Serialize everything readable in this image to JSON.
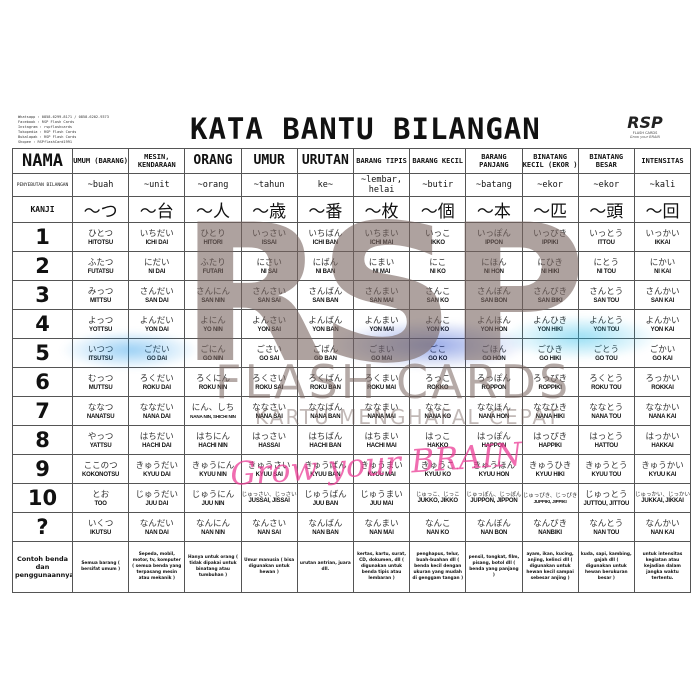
{
  "contact": [
    "Whatsapp  : 0858-6299-8171 / 0858-6202-9373",
    "Facebook  : RSP Flash Cards",
    "Instagram : rspflashcards",
    "Tokopedia : RSP Flash Cards",
    "Bukalapak : RSP Flash Cards",
    "Shopee    : RSPflashCard1991"
  ],
  "title": "KATA BANTU BILANGAN",
  "logo": {
    "text": "RSP",
    "sub": "FLASH CARDS",
    "tagline": "Grow your BRAIN"
  },
  "watermark": {
    "rsp": "RSP",
    "flash_cards": "FLASH CARDS",
    "kartu": "KARTU MENGHAFAL CEPAT",
    "grow": "Grow your BRAIN"
  },
  "headers": [
    "NAMA",
    "UMUM (BARANG)",
    "MESIN, KENDARAAN",
    "ORANG",
    "UMUR",
    "URUTAN",
    "BARANG TIPIS",
    "BARANG KECIL",
    "BARANG PANJANG",
    "BINATANG KECIL (EKOR )",
    "BINATANG BESAR",
    "INTENSITAS"
  ],
  "penyebutan": {
    "label": "PENYEBUTAN BILANGAN",
    "values": [
      "~buah",
      "~unit",
      "~orang",
      "~tahun",
      "ke~",
      "~lembar, helai",
      "~butir",
      "~batang",
      "~ekor",
      "~ekor",
      "~kali"
    ]
  },
  "kanji": {
    "label": "KANJI",
    "values": [
      "〜つ",
      "〜台",
      "〜人",
      "〜歳",
      "〜番",
      "〜枚",
      "〜個",
      "〜本",
      "〜匹",
      "〜頭",
      "〜回"
    ]
  },
  "rows": [
    {
      "number": "1",
      "cells": [
        [
          "ひとつ",
          "HITOTSU"
        ],
        [
          "いちだい",
          "ICHI DAI"
        ],
        [
          "ひとり",
          "HITORI"
        ],
        [
          "いっさい",
          "ISSAI"
        ],
        [
          "いちばん",
          "ICHI BAN"
        ],
        [
          "いちまい",
          "ICHI MAI"
        ],
        [
          "いっこ",
          "IKKO"
        ],
        [
          "いっぽん",
          "IPPON"
        ],
        [
          "いっぴき",
          "IPPIKI"
        ],
        [
          "いっとう",
          "ITTOU"
        ],
        [
          "いっかい",
          "IKKAI"
        ]
      ]
    },
    {
      "number": "2",
      "cells": [
        [
          "ふたつ",
          "FUTATSU"
        ],
        [
          "にだい",
          "NI DAI"
        ],
        [
          "ふたり",
          "FUTARI"
        ],
        [
          "にさい",
          "NI SAI"
        ],
        [
          "にばん",
          "NI BAN"
        ],
        [
          "にまい",
          "NI MAI"
        ],
        [
          "にこ",
          "NI KO"
        ],
        [
          "にほん",
          "NI HON"
        ],
        [
          "にひき",
          "NI HIKI"
        ],
        [
          "にとう",
          "NI TOU"
        ],
        [
          "にかい",
          "NI KAI"
        ]
      ]
    },
    {
      "number": "3",
      "cells": [
        [
          "みっつ",
          "MITTSU"
        ],
        [
          "さんだい",
          "SAN DAI"
        ],
        [
          "さんにん",
          "SAN NIN"
        ],
        [
          "さんさい",
          "SAN SAI"
        ],
        [
          "さんばん",
          "SAN BAN"
        ],
        [
          "さんまい",
          "SAN MAI"
        ],
        [
          "さんこ",
          "SAN KO"
        ],
        [
          "さんぼん",
          "SAN BON"
        ],
        [
          "さんびき",
          "SAN BIKI"
        ],
        [
          "さんとう",
          "SAN TOU"
        ],
        [
          "さんかい",
          "SAN KAI"
        ]
      ]
    },
    {
      "number": "4",
      "cells": [
        [
          "よっつ",
          "YOTTSU"
        ],
        [
          "よんだい",
          "YON DAI"
        ],
        [
          "よにん",
          "YO NIN"
        ],
        [
          "よんさい",
          "YON SAI"
        ],
        [
          "よんばん",
          "YON BAN"
        ],
        [
          "よんまい",
          "YON MAI"
        ],
        [
          "よんこ",
          "YON KO"
        ],
        [
          "よんほん",
          "YON HON"
        ],
        [
          "よんひき",
          "YON HIKI"
        ],
        [
          "よんとう",
          "YON TOU"
        ],
        [
          "よんかい",
          "YON KAI"
        ]
      ]
    },
    {
      "number": "5",
      "cells": [
        [
          "いつつ",
          "ITSUTSU"
        ],
        [
          "ごだい",
          "GO DAI"
        ],
        [
          "ごにん",
          "GO NIN"
        ],
        [
          "ごさい",
          "GO SAI"
        ],
        [
          "ごばん",
          "GO BAN"
        ],
        [
          "ごまい",
          "GO MAI"
        ],
        [
          "ごこ",
          "GO KO"
        ],
        [
          "ごほん",
          "GO HON"
        ],
        [
          "ごひき",
          "GO HIKI"
        ],
        [
          "ごとう",
          "GO TOU"
        ],
        [
          "ごかい",
          "GO KAI"
        ]
      ]
    },
    {
      "number": "6",
      "cells": [
        [
          "むっつ",
          "MUTTSU"
        ],
        [
          "ろくだい",
          "ROKU DAI"
        ],
        [
          "ろくにん",
          "ROKU NIN"
        ],
        [
          "ろくさい",
          "ROKU SAI"
        ],
        [
          "ろくばん",
          "ROKU BAN"
        ],
        [
          "ろくまい",
          "ROKU MAI"
        ],
        [
          "ろっこ",
          "ROKKO"
        ],
        [
          "ろっぽん",
          "ROPPON"
        ],
        [
          "ろっぴき",
          "ROPPIKI"
        ],
        [
          "ろくとう",
          "ROKU TOU"
        ],
        [
          "ろっかい",
          "ROKKAI"
        ]
      ]
    },
    {
      "number": "7",
      "cells": [
        [
          "ななつ",
          "NANATSU"
        ],
        [
          "ななだい",
          "NANA DAI"
        ],
        [
          "にん、しち",
          "NANA NIN, SHICHI NIN"
        ],
        [
          "ななさい",
          "NANA SAI"
        ],
        [
          "ななばん",
          "NANA BAN"
        ],
        [
          "ななまい",
          "NANA MAI"
        ],
        [
          "ななこ",
          "NANA KO"
        ],
        [
          "ななほん",
          "NANA HON"
        ],
        [
          "ななひき",
          "NANA HIKI"
        ],
        [
          "ななとう",
          "NANA TOU"
        ],
        [
          "ななかい",
          "NANA KAI"
        ]
      ]
    },
    {
      "number": "8",
      "cells": [
        [
          "やっつ",
          "YATTSU"
        ],
        [
          "はちだい",
          "HACHI DAI"
        ],
        [
          "はちにん",
          "HACHI NIN"
        ],
        [
          "はっさい",
          "HASSAI"
        ],
        [
          "はちばん",
          "HACHI BAN"
        ],
        [
          "はちまい",
          "HACHI MAI"
        ],
        [
          "はっこ",
          "HAKKO"
        ],
        [
          "はっぽん",
          "HAPPON"
        ],
        [
          "はっぴき",
          "HAPPIKI"
        ],
        [
          "はっとう",
          "HATTOU"
        ],
        [
          "はっかい",
          "HAKKAI"
        ]
      ]
    },
    {
      "number": "9",
      "cells": [
        [
          "ここのつ",
          "KOKONOTSU"
        ],
        [
          "きゅうだい",
          "KYUU DAI"
        ],
        [
          "きゅうにん",
          "KYUU NIN"
        ],
        [
          "きゅうさい",
          "KYUU SAI"
        ],
        [
          "きゅうばん",
          "KYUU BAN"
        ],
        [
          "きゅうまい",
          "KYUU MAI"
        ],
        [
          "きゅうこ",
          "KYUU KO"
        ],
        [
          "きゅうほん",
          "KYUU HON"
        ],
        [
          "きゅうひき",
          "KYUU HIKI"
        ],
        [
          "きゅうとう",
          "KYUU TOU"
        ],
        [
          "きゅうかい",
          "KYUU KAI"
        ]
      ]
    },
    {
      "number": "10",
      "cells": [
        [
          "とお",
          "TOO"
        ],
        [
          "じゅうだい",
          "JUU DAI"
        ],
        [
          "じゅうにん",
          "JUU NIN"
        ],
        [
          "じゅっさい、じっさい",
          "JUSSAI, JISSAI"
        ],
        [
          "じゅうばん",
          "JUU BAN"
        ],
        [
          "じゅうまい",
          "JUU MAI"
        ],
        [
          "じゅっこ、じっこ",
          "JUKKO, JIKKO"
        ],
        [
          "じゅっぽん、じっぽん",
          "JUPPON, JIPPON"
        ],
        [
          "じゅっぴき、じっぴき",
          "JUPPIKI, JIPPIKI"
        ],
        [
          "じゅっとう",
          "JUTTOU, JITTOU"
        ],
        [
          "じゅっかい、じっかい",
          "JUKKAI, JIKKAI"
        ]
      ]
    },
    {
      "number": "?",
      "cells": [
        [
          "いくつ",
          "IKUTSU"
        ],
        [
          "なんだい",
          "NAN DAI"
        ],
        [
          "なんにん",
          "NAN NIN"
        ],
        [
          "なんさい",
          "NAN SAI"
        ],
        [
          "なんばん",
          "NAN BAN"
        ],
        [
          "なんまい",
          "NAN MAI"
        ],
        [
          "なんこ",
          "NAN KO"
        ],
        [
          "なんぼん",
          "NAN BON"
        ],
        [
          "なんびき",
          "NANBIKI"
        ],
        [
          "なんとう",
          "NAN TOU"
        ],
        [
          "なんかい",
          "NAN KAI"
        ]
      ]
    }
  ],
  "examples": {
    "label": "Contoh benda dan penggunaannya",
    "values": [
      "Semua barang ( bersifat umum )",
      "Sepeda, mobil, motor, tv, komputer ( semua benda yang terpasang mesin atau mekanik )",
      "Hanya untuk orang ( tidak dipakai untuk binatang atau tumbuhan )",
      "Umur manusia ( bisa digunakan untuk hewan )",
      "urutan antrian, juara dll.",
      "kertas, kartu, surat, CD, dokumen, dll ( digunakan untuk benda tipis atau lembaran )",
      "penghapus, telur, buah-buahan dll ( benda kecil dengan ukuran yang mudah di genggam tangan )",
      "pensil, tongkat, film, pisang, botol dll ( benda yang panjang )",
      "ayam, ikan, kucing, anjing, kelinci dll ( digunakan untuk hewan kecil sampai sebesar anjing )",
      "kuda, sapi, kambing, gajah dll ( digunakan untuk hewan berukuran besar )",
      "untuk intensitas kegiatan atau kejadian dalam jangka waktu tertentu."
    ]
  },
  "colors": {
    "watermark_gray": "#786460",
    "watermark_pink": "#eb3c96",
    "smoke_blue": "#1fb8e8",
    "border": "#555555"
  }
}
